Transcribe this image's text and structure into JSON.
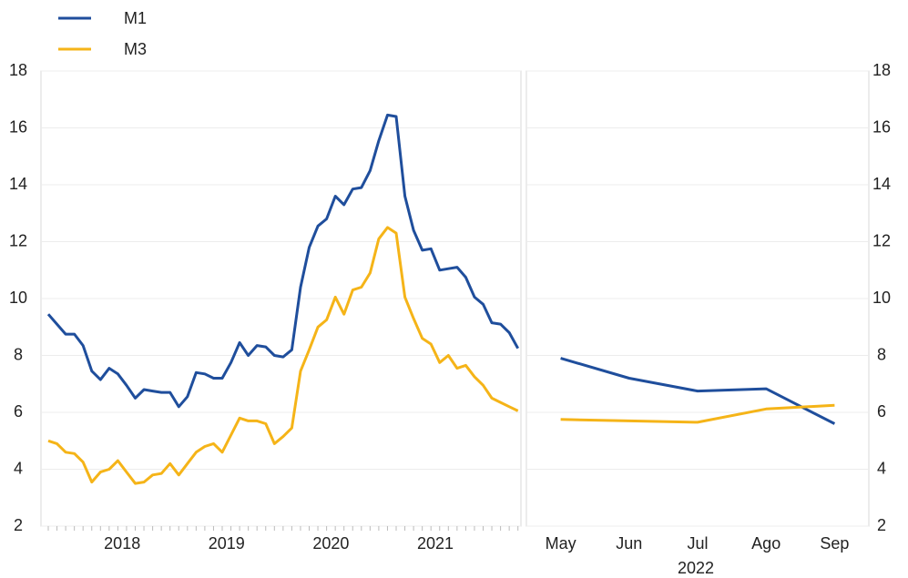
{
  "chart_data": [
    {
      "type": "line",
      "categories": [
        null,
        null,
        null,
        null,
        null,
        null,
        null,
        null,
        "2018",
        null,
        null,
        null,
        null,
        null,
        null,
        null,
        null,
        null,
        null,
        null,
        "2019",
        null,
        null,
        null,
        null,
        null,
        null,
        null,
        null,
        null,
        null,
        null,
        "2020",
        null,
        null,
        null,
        null,
        null,
        null,
        null,
        null,
        null,
        null,
        null,
        "2021",
        null,
        null,
        null,
        null,
        null,
        null,
        null,
        null,
        null,
        null
      ],
      "series": [
        {
          "name": "M1",
          "color": "#1f4e9c",
          "values": [
            9.45,
            9.1,
            8.75,
            8.75,
            8.35,
            7.45,
            7.15,
            7.55,
            7.35,
            6.95,
            6.5,
            6.8,
            6.75,
            6.7,
            6.7,
            6.2,
            6.55,
            7.4,
            7.35,
            7.2,
            7.2,
            7.75,
            8.45,
            8.0,
            8.35,
            8.3,
            8.0,
            7.95,
            8.2,
            10.4,
            11.8,
            12.55,
            12.8,
            13.6,
            13.3,
            13.85,
            13.9,
            14.5,
            15.55,
            16.45,
            16.4,
            13.6,
            12.4,
            11.7,
            11.75,
            11.0,
            11.05,
            11.1,
            10.75,
            10.05,
            9.8,
            9.15,
            9.1,
            8.8,
            8.25
          ]
        },
        {
          "name": "M3",
          "color": "#f5b418",
          "values": [
            5.0,
            4.9,
            4.6,
            4.55,
            4.25,
            3.55,
            3.9,
            4.0,
            4.3,
            3.9,
            3.5,
            3.55,
            3.8,
            3.85,
            4.2,
            3.8,
            4.2,
            4.6,
            4.8,
            4.9,
            4.6,
            5.2,
            5.8,
            5.7,
            5.7,
            5.6,
            4.9,
            5.15,
            5.45,
            7.45,
            8.2,
            9.0,
            9.25,
            10.05,
            9.45,
            10.3,
            10.4,
            10.9,
            12.1,
            12.5,
            12.3,
            10.05,
            9.3,
            8.6,
            8.4,
            7.75,
            8.0,
            7.55,
            7.65,
            7.25,
            6.95,
            6.5,
            6.35,
            6.2,
            6.05
          ]
        }
      ],
      "ylim": [
        2,
        18
      ],
      "yticks": [
        2,
        4,
        6,
        8,
        10,
        12,
        14,
        16,
        18
      ],
      "grid": true,
      "legend": "top-left"
    },
    {
      "type": "line",
      "xlabel": "2022",
      "categories": [
        "May",
        "Jun",
        "Jul",
        "Ago",
        "Sep"
      ],
      "series": [
        {
          "color": "#1f4e9c",
          "values": [
            7.9,
            7.2,
            6.75,
            6.83,
            5.6
          ]
        },
        {
          "color": "#f5b418",
          "values": [
            5.75,
            5.7,
            5.65,
            6.12,
            6.25
          ]
        }
      ],
      "ylim": [
        2,
        18
      ],
      "yticks": [
        2,
        4,
        6,
        8,
        10,
        12,
        14,
        16,
        18
      ],
      "grid": true
    }
  ]
}
